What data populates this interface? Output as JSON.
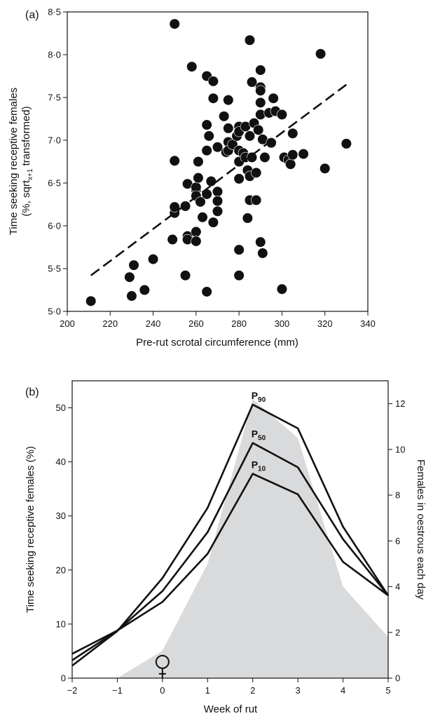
{
  "chart_data": [
    {
      "type": "scatter",
      "panel_label": "(a)",
      "xlabel": "Pre-rut scrotal circumference (mm)",
      "ylabel_line1": "Time seeking receptive females",
      "ylabel_line2": "(%, sqrt",
      "ylabel_sub": "x+1",
      "ylabel_line2_end": " transformed)",
      "xlim": [
        200,
        340
      ],
      "ylim": [
        5.0,
        8.5
      ],
      "xticks": [
        "200",
        "220",
        "240",
        "260",
        "280",
        "300",
        "320",
        "340"
      ],
      "yticks": [
        "5·0",
        "5·5",
        "6·0",
        "6·5",
        "7·0",
        "7·5",
        "8·0",
        "8·5"
      ],
      "grid": false,
      "trendline": {
        "style": "dashed",
        "x": [
          211,
          330
        ],
        "y": [
          5.42,
          7.65
        ]
      },
      "points": [
        [
          211,
          5.12
        ],
        [
          229,
          5.4
        ],
        [
          230,
          5.18
        ],
        [
          231,
          5.54
        ],
        [
          236,
          5.25
        ],
        [
          240,
          5.61
        ],
        [
          249,
          5.84
        ],
        [
          250,
          6.15
        ],
        [
          250,
          6.22
        ],
        [
          250,
          6.76
        ],
        [
          250,
          8.36
        ],
        [
          255,
          6.23
        ],
        [
          255,
          5.42
        ],
        [
          256,
          6.49
        ],
        [
          256,
          5.88
        ],
        [
          256,
          5.84
        ],
        [
          258,
          7.86
        ],
        [
          260,
          6.42
        ],
        [
          260,
          6.45
        ],
        [
          260,
          6.35
        ],
        [
          260,
          5.93
        ],
        [
          260,
          5.82
        ],
        [
          261,
          6.75
        ],
        [
          261,
          6.56
        ],
        [
          262,
          6.28
        ],
        [
          263,
          6.1
        ],
        [
          265,
          7.75
        ],
        [
          265,
          7.18
        ],
        [
          265,
          6.88
        ],
        [
          265,
          6.37
        ],
        [
          265,
          5.23
        ],
        [
          266,
          7.05
        ],
        [
          267,
          6.52
        ],
        [
          268,
          7.69
        ],
        [
          268,
          7.49
        ],
        [
          268,
          6.04
        ],
        [
          270,
          6.92
        ],
        [
          270,
          6.4
        ],
        [
          270,
          6.29
        ],
        [
          270,
          6.17
        ],
        [
          273,
          7.28
        ],
        [
          274,
          6.86
        ],
        [
          275,
          7.47
        ],
        [
          275,
          7.14
        ],
        [
          275,
          6.98
        ],
        [
          275,
          6.88
        ],
        [
          277,
          6.95
        ],
        [
          279,
          7.05
        ],
        [
          280,
          7.16
        ],
        [
          280,
          7.1
        ],
        [
          280,
          6.88
        ],
        [
          280,
          6.75
        ],
        [
          280,
          6.55
        ],
        [
          280,
          5.72
        ],
        [
          280,
          5.42
        ],
        [
          282,
          6.85
        ],
        [
          283,
          7.16
        ],
        [
          283,
          6.8
        ],
        [
          284,
          6.65
        ],
        [
          284,
          6.09
        ],
        [
          285,
          8.17
        ],
        [
          285,
          7.05
        ],
        [
          285,
          6.58
        ],
        [
          285,
          6.3
        ],
        [
          286,
          7.68
        ],
        [
          286,
          6.8
        ],
        [
          287,
          7.2
        ],
        [
          288,
          6.62
        ],
        [
          288,
          6.3
        ],
        [
          289,
          7.12
        ],
        [
          290,
          7.82
        ],
        [
          290,
          7.62
        ],
        [
          290,
          7.58
        ],
        [
          290,
          7.44
        ],
        [
          290,
          7.3
        ],
        [
          290,
          5.81
        ],
        [
          291,
          7.01
        ],
        [
          291,
          5.68
        ],
        [
          292,
          6.8
        ],
        [
          294,
          7.32
        ],
        [
          295,
          6.97
        ],
        [
          296,
          7.49
        ],
        [
          297,
          7.34
        ],
        [
          300,
          7.3
        ],
        [
          300,
          5.26
        ],
        [
          301,
          6.8
        ],
        [
          303,
          6.77
        ],
        [
          304,
          6.72
        ],
        [
          305,
          7.08
        ],
        [
          305,
          6.83
        ],
        [
          310,
          6.84
        ],
        [
          318,
          8.01
        ],
        [
          320,
          6.67
        ],
        [
          330,
          6.96
        ]
      ]
    },
    {
      "type": "line",
      "panel_label": "(b)",
      "xlabel": "Week of rut",
      "ylabel": "Time seeking receptive females (%)",
      "y2label": "Females in oestrous each day",
      "xlim": [
        -2,
        5
      ],
      "ylim": [
        0,
        55
      ],
      "y2lim": [
        0,
        13
      ],
      "xticks": [
        "−2",
        "−1",
        "0",
        "1",
        "2",
        "3",
        "4",
        "5"
      ],
      "yticks": [
        "0",
        "10",
        "20",
        "30",
        "40",
        "50"
      ],
      "y2ticks": [
        "0",
        "2",
        "4",
        "6",
        "8",
        "10",
        "12"
      ],
      "x": [
        -2,
        -1,
        0,
        1,
        2,
        3,
        4,
        5
      ],
      "series": [
        {
          "label": "P",
          "label_sub": "90",
          "values": [
            2.3,
            8.7,
            18.5,
            31.5,
            50.6,
            46.2,
            28.0,
            15.3
          ]
        },
        {
          "label": "P",
          "label_sub": "50",
          "values": [
            3.3,
            8.8,
            16.1,
            27.0,
            43.5,
            39.0,
            25.7,
            15.3
          ]
        },
        {
          "label": "P",
          "label_sub": "10",
          "values": [
            4.5,
            8.8,
            14.1,
            23.0,
            37.8,
            34.0,
            21.5,
            15.3
          ]
        }
      ],
      "oestrous_area": {
        "color": "#d9dadc",
        "x": [
          -1,
          0,
          1,
          2,
          3,
          4,
          5
        ],
        "y": [
          0,
          1.2,
          5.0,
          12.2,
          10.5,
          4.0,
          1.8
        ]
      },
      "annotation_symbol": "♀",
      "annotation_x": 0
    }
  ]
}
